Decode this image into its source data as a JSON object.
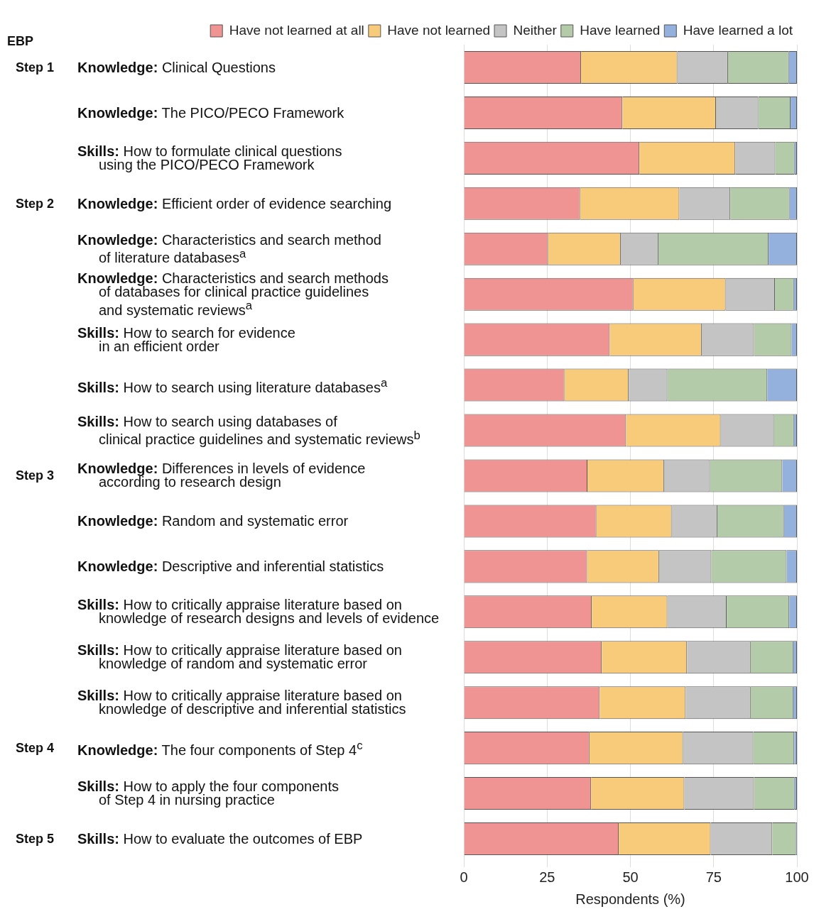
{
  "chart_data": {
    "type": "bar",
    "orientation": "horizontal",
    "stacked": true,
    "ylabel": "EBP",
    "xlabel": "Respondents (%)",
    "categories": [
      "Step 1\tKnowledge: Clinical Questions",
      "Knowledge: The PICO/PECO Framework",
      "Skills: How to formulate clinical questions\nusing the PICO/PECO Framework",
      "Step 2\tKnowledge: Efficient order of evidence searching",
      "Knowledge: Characteristics and search method\nof literature databases$^{a}$",
      "Knowledge: Characteristics and search methods\nof databases for clinical practice guidelines\nand systematic reviews$^{a}$",
      "Skills: How to search for evidence\nin an efficient order",
      "Skills: How to search using literature databases$^{a}$",
      "Skills: How to search using databases of\nclinical practice guidelines and systematic reviews$^{b}$",
      "Step 3\tKnowledge: Differences in levels of evidence\naccording to research design",
      "Knowledge: Random and systematic error",
      "Knowledge: Descriptive and inferential statistics",
      "Skills: How to critically appraise literature based on\nknowledge of research designs and levels of evidence",
      "Skills: How to critically appraise literature based on\nknowledge of random and systematic error",
      "Skills: How to critically appraise literature based on\nknowledge of descriptive and inferential statistics",
      "Step 4\tKnowledge: The four components of Step 4$^{c}$",
      "Skills: How to apply the four components\nof Step 4 in nursing practice",
      "Step 5\tSkills: How to evaluate the outcomes of EBP"
    ],
    "series": [
      {
        "name": "Have not learned at all",
        "color": "#f09393",
        "values": [
          35.2,
          47.6,
          52.7,
          34.9,
          25.3,
          50.9,
          43.8,
          30.2,
          48.7,
          37.1,
          39.8,
          37.0,
          38.4,
          41.4,
          40.8,
          37.7,
          38.2,
          46.5
        ]
      },
      {
        "name": "Have not learned",
        "color": "#f8cb7a",
        "values": [
          28.9,
          28.1,
          28.8,
          29.8,
          21.8,
          27.7,
          27.6,
          19.3,
          28.4,
          23.0,
          22.6,
          21.6,
          22.7,
          25.6,
          25.8,
          28.1,
          28.0,
          27.6
        ]
      },
      {
        "name": "Neither",
        "color": "#c4c4c4",
        "values": [
          15.2,
          12.7,
          12.0,
          15.3,
          11.3,
          14.8,
          15.7,
          11.6,
          16.0,
          13.8,
          13.7,
          15.7,
          17.8,
          19.1,
          19.5,
          21.1,
          20.9,
          18.5
        ]
      },
      {
        "name": "Have learned",
        "color": "#b3cba9",
        "values": [
          18.3,
          9.7,
          5.8,
          17.8,
          33.1,
          5.7,
          11.3,
          30.0,
          6.0,
          21.7,
          20.0,
          22.6,
          18.8,
          12.8,
          12.8,
          12.3,
          12.2,
          7.1
        ]
      },
      {
        "name": "Have learned a lot",
        "color": "#94b0dc",
        "values": [
          2.4,
          1.9,
          0.7,
          2.2,
          8.5,
          0.9,
          1.6,
          8.9,
          0.9,
          4.4,
          3.9,
          3.1,
          2.3,
          1.1,
          1.1,
          0.8,
          0.7,
          0.3
        ]
      }
    ],
    "xlim": [
      0,
      100
    ],
    "xticks": [
      0,
      25,
      50,
      75,
      100
    ],
    "grid": "x",
    "legend": "top"
  }
}
